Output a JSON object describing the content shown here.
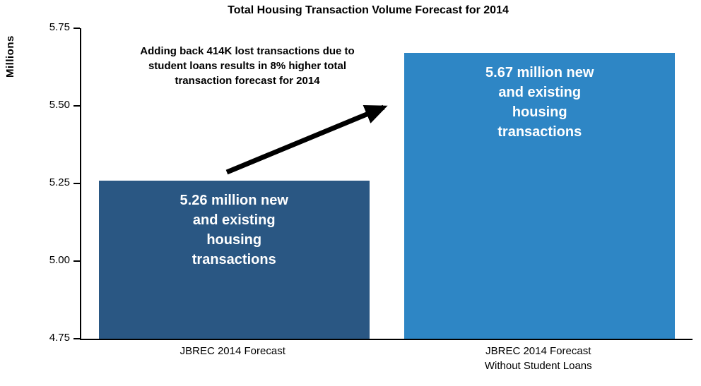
{
  "chart_data": {
    "type": "bar",
    "title": "Total Housing Transaction Volume Forecast for 2014",
    "ylabel": "Millions",
    "xlabel": "",
    "ylim": [
      4.75,
      5.75
    ],
    "yticks": [
      5.75,
      5.5,
      5.25,
      5.0,
      4.75
    ],
    "categories": [
      "JBREC 2014 Forecast",
      "JBREC 2014 Forecast\nWithout Student Loans"
    ],
    "values": [
      5.26,
      5.67
    ],
    "bar_labels": [
      "5.26 million new\nand existing\nhousing\ntransactions",
      "5.67 million new\nand existing\nhousing\ntransactions"
    ],
    "bar_colors": [
      "#2A5783",
      "#2E86C5"
    ],
    "annotation": "Adding back 414K lost transactions due to\nstudent loans results in 8% higher total\ntransaction forecast for 2014",
    "grid": false,
    "legend": false,
    "axis_color": "#000000",
    "text_color": "#000000",
    "arrow_color": "#000000"
  }
}
